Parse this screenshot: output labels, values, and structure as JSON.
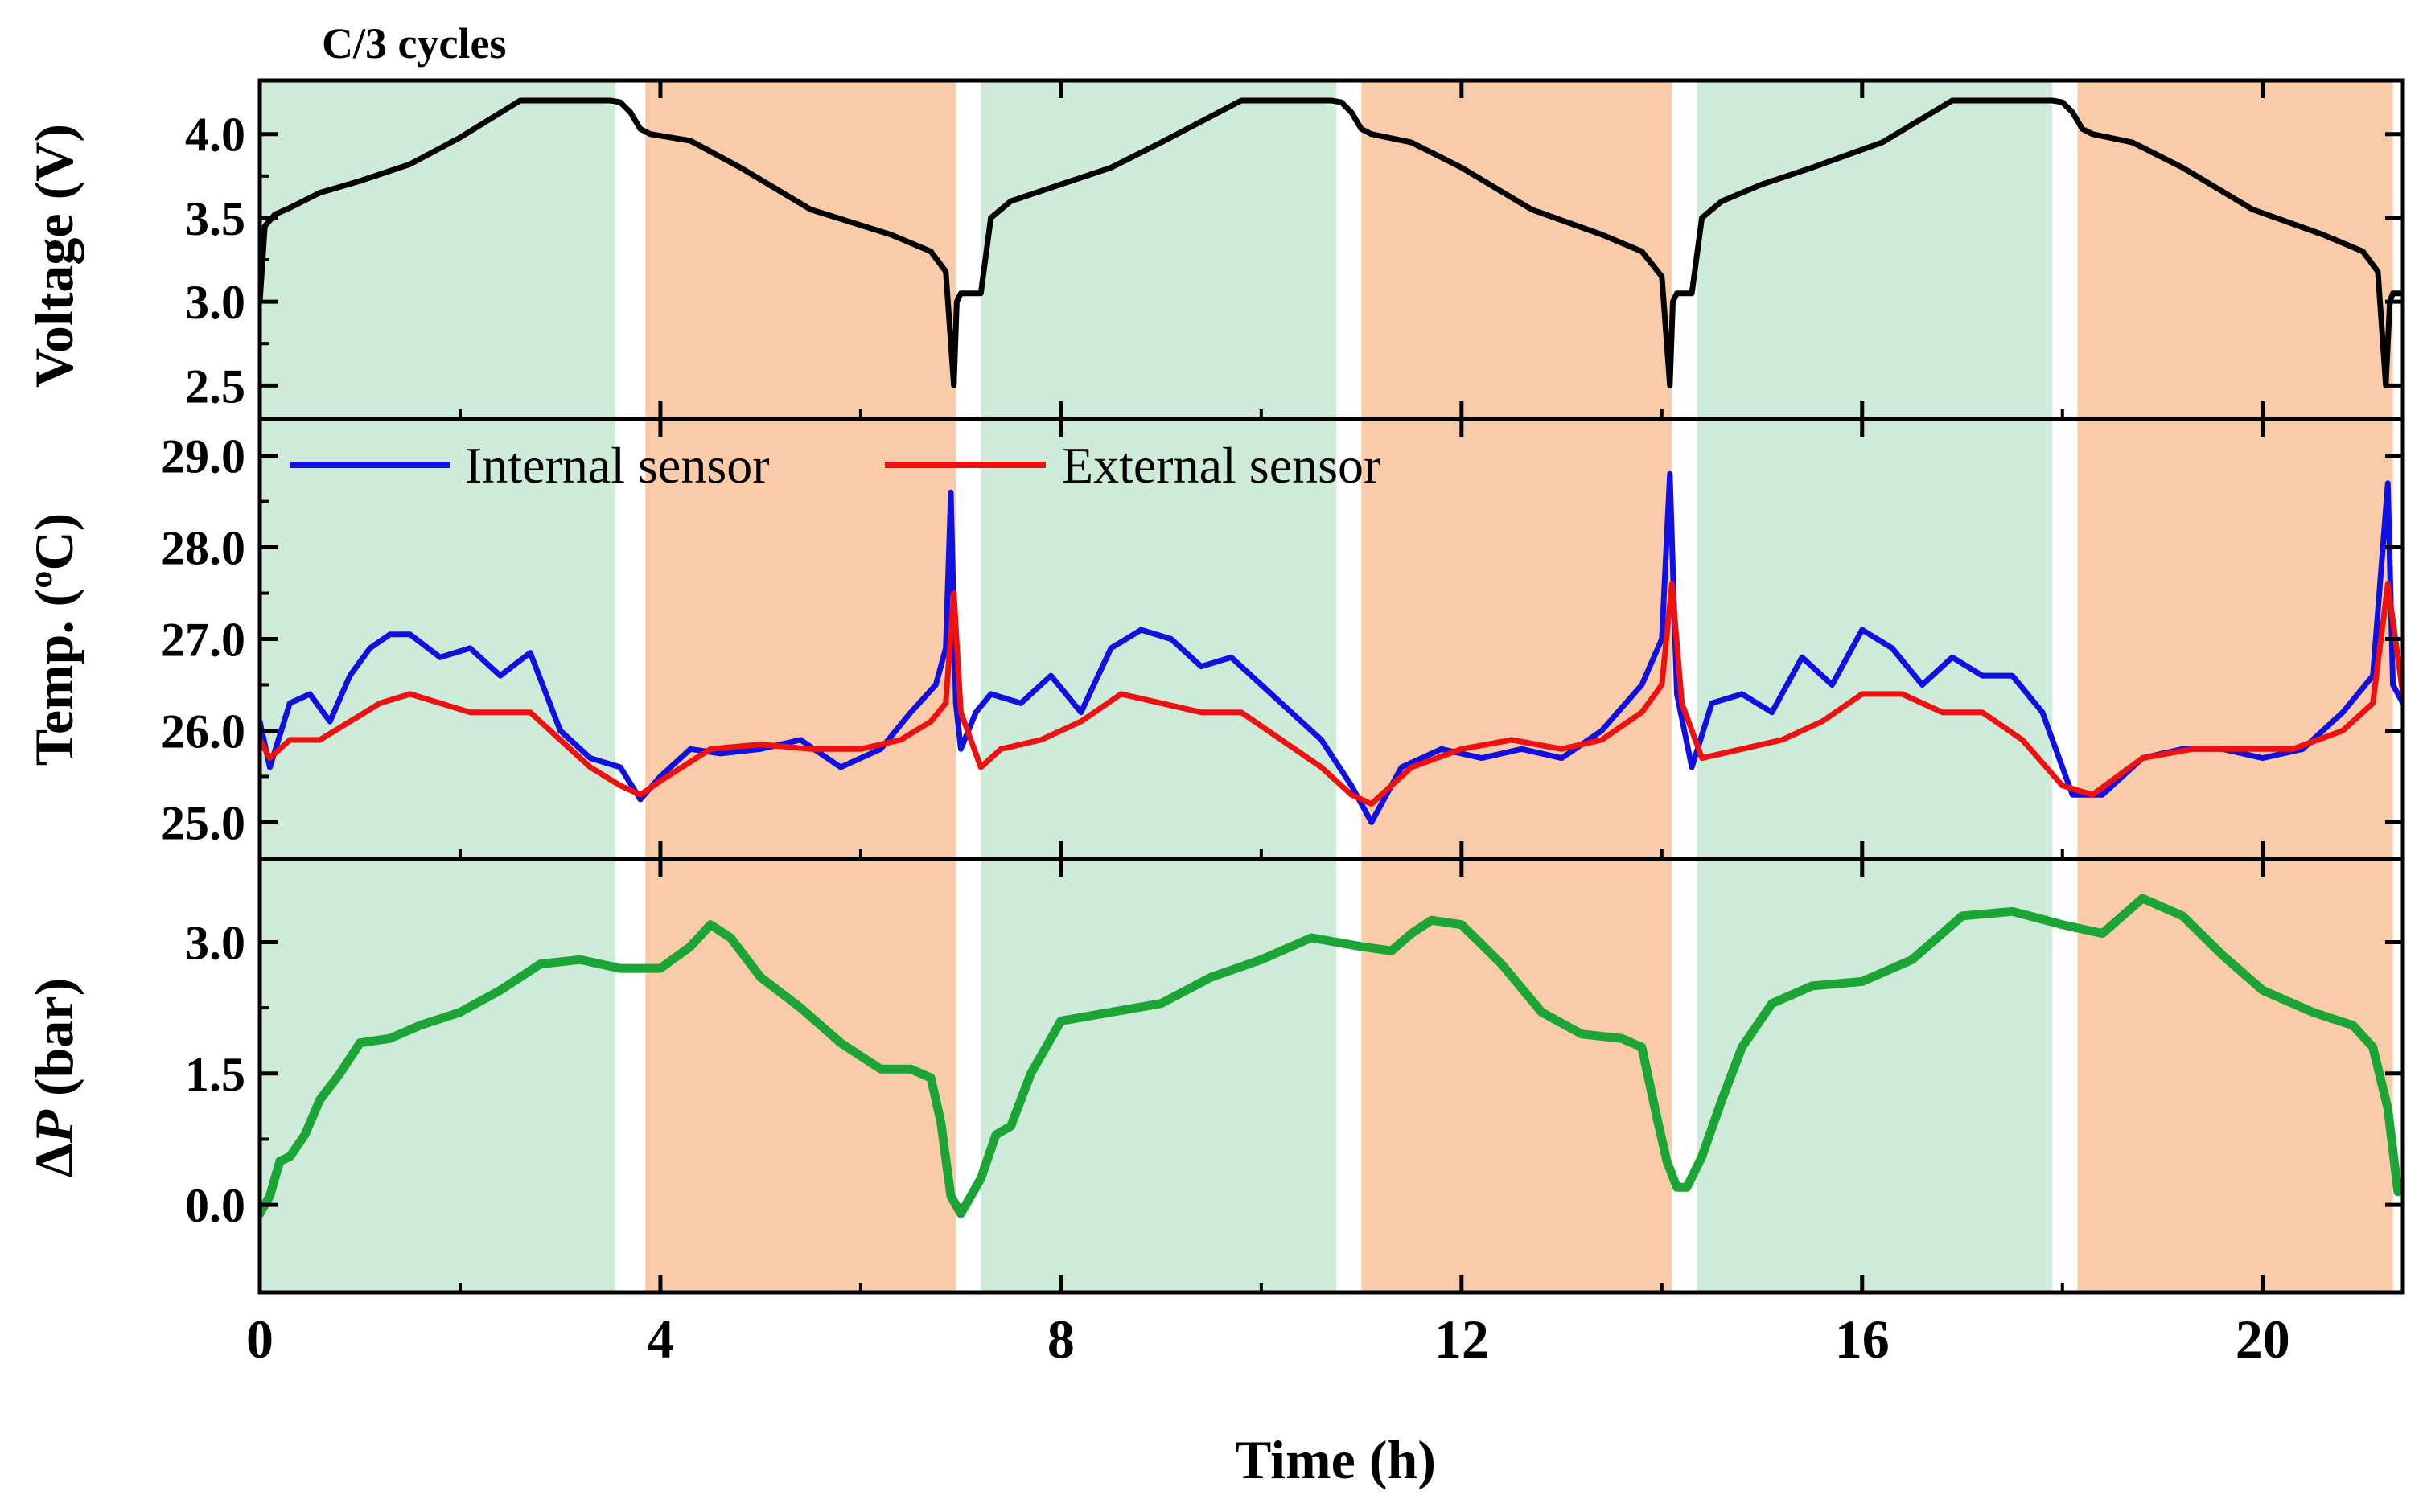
{
  "chart_data": {
    "type": "line",
    "title": "C/3 cycles",
    "xlabel": "Time (h)",
    "xlim": [
      0,
      21.4
    ],
    "xticks": [
      0,
      4,
      8,
      12,
      16,
      20
    ],
    "xtick_labels": [
      "0",
      "4",
      "8",
      "12",
      "16",
      "20"
    ],
    "shaded_regions": [
      {
        "phase": "charge",
        "color": "#cdebd8",
        "x": [
          0.0,
          3.55
        ]
      },
      {
        "phase": "discharge",
        "color": "#f9cba8",
        "x": [
          3.85,
          6.95
        ]
      },
      {
        "phase": "charge",
        "color": "#cdebd8",
        "x": [
          7.2,
          10.75
        ]
      },
      {
        "phase": "discharge",
        "color": "#f9cba8",
        "x": [
          11.0,
          14.1
        ]
      },
      {
        "phase": "charge",
        "color": "#cdebd8",
        "x": [
          14.35,
          17.9
        ]
      },
      {
        "phase": "discharge",
        "color": "#f9cba8",
        "x": [
          18.15,
          21.3
        ]
      }
    ],
    "panels": [
      {
        "name": "voltage",
        "ylabel": "Voltage (V)",
        "ylim": [
          2.3,
          4.32
        ],
        "yticks": [
          2.5,
          3.0,
          3.5,
          4.0
        ],
        "ytick_labels": [
          "2.5",
          "3.0",
          "3.5",
          "4.0"
        ],
        "series": [
          {
            "name": "Voltage",
            "color": "#000000",
            "x": [
              0,
              0.05,
              0.15,
              0.3,
              0.6,
              1.0,
              1.5,
              2.0,
              2.6,
              3.0,
              3.5,
              3.6,
              3.7,
              3.8,
              3.9,
              4.3,
              4.8,
              5.5,
              6.3,
              6.7,
              6.85,
              6.93,
              6.96,
              7.0,
              7.2,
              7.3,
              7.5,
              8.0,
              8.5,
              9.0,
              9.8,
              10.2,
              10.7,
              10.8,
              10.9,
              11.0,
              11.1,
              11.5,
              12.0,
              12.7,
              13.4,
              13.8,
              14.0,
              14.08,
              14.11,
              14.15,
              14.3,
              14.4,
              14.6,
              15.0,
              15.5,
              16.2,
              16.9,
              17.3,
              17.9,
              18.0,
              18.1,
              18.2,
              18.3,
              18.7,
              19.2,
              19.9,
              20.6,
              21.0,
              21.15,
              21.23,
              21.27,
              21.3,
              21.4
            ],
            "y": [
              3.0,
              3.45,
              3.52,
              3.56,
              3.65,
              3.72,
              3.82,
              3.98,
              4.2,
              4.2,
              4.2,
              4.19,
              4.13,
              4.03,
              4.0,
              3.96,
              3.8,
              3.55,
              3.4,
              3.3,
              3.18,
              2.5,
              3.0,
              3.05,
              3.05,
              3.5,
              3.6,
              3.7,
              3.8,
              3.95,
              4.2,
              4.2,
              4.2,
              4.19,
              4.13,
              4.03,
              4.0,
              3.95,
              3.8,
              3.55,
              3.4,
              3.3,
              3.15,
              2.5,
              3.0,
              3.05,
              3.05,
              3.5,
              3.6,
              3.7,
              3.8,
              3.95,
              4.2,
              4.2,
              4.2,
              4.19,
              4.13,
              4.03,
              4.0,
              3.95,
              3.8,
              3.55,
              3.4,
              3.3,
              3.18,
              2.5,
              3.0,
              3.05,
              3.05
            ]
          }
        ]
      },
      {
        "name": "temperature",
        "ylabel": "Temp. (ºC)",
        "ylim": [
          24.6,
          29.4
        ],
        "yticks": [
          25.0,
          26.0,
          27.0,
          28.0,
          29.0
        ],
        "ytick_labels": [
          "25.0",
          "26.0",
          "27.0",
          "28.0",
          "29.0"
        ],
        "legend": {
          "position": "top-left",
          "entries": [
            {
              "label": "Internal sensor",
              "color": "#1010e0"
            },
            {
              "label": "External sensor",
              "color": "#ee1111"
            }
          ]
        },
        "series": [
          {
            "name": "Internal sensor",
            "color": "#1010e0",
            "x": [
              0,
              0.1,
              0.3,
              0.5,
              0.7,
              0.9,
              1.1,
              1.3,
              1.5,
              1.8,
              2.1,
              2.4,
              2.7,
              3.0,
              3.3,
              3.6,
              3.8,
              4.0,
              4.3,
              4.6,
              5.0,
              5.4,
              5.8,
              6.2,
              6.5,
              6.75,
              6.85,
              6.9,
              6.95,
              7.0,
              7.15,
              7.3,
              7.6,
              7.9,
              8.2,
              8.5,
              8.8,
              9.1,
              9.4,
              9.7,
              10.0,
              10.3,
              10.6,
              10.9,
              11.1,
              11.4,
              11.8,
              12.2,
              12.6,
              13.0,
              13.4,
              13.8,
              14.0,
              14.08,
              14.15,
              14.3,
              14.5,
              14.8,
              15.1,
              15.4,
              15.7,
              16.0,
              16.3,
              16.6,
              16.9,
              17.2,
              17.5,
              17.8,
              18.1,
              18.4,
              18.8,
              19.2,
              19.6,
              20.0,
              20.4,
              20.8,
              21.1,
              21.25,
              21.3,
              21.4
            ],
            "y": [
              26.1,
              25.6,
              26.3,
              26.4,
              26.1,
              26.6,
              26.9,
              27.05,
              27.05,
              26.8,
              26.9,
              26.6,
              26.85,
              26.0,
              25.7,
              25.6,
              25.25,
              25.5,
              25.8,
              25.75,
              25.8,
              25.9,
              25.6,
              25.8,
              26.2,
              26.5,
              26.9,
              28.6,
              26.3,
              25.8,
              26.2,
              26.4,
              26.3,
              26.6,
              26.2,
              26.9,
              27.1,
              27.0,
              26.7,
              26.8,
              26.5,
              26.2,
              25.9,
              25.4,
              25.0,
              25.6,
              25.8,
              25.7,
              25.8,
              25.7,
              26.0,
              26.5,
              27.0,
              28.8,
              26.4,
              25.6,
              26.3,
              26.4,
              26.2,
              26.8,
              26.5,
              27.1,
              26.9,
              26.5,
              26.8,
              26.6,
              26.6,
              26.2,
              25.3,
              25.3,
              25.7,
              25.8,
              25.8,
              25.7,
              25.8,
              26.2,
              26.6,
              28.7,
              26.5,
              26.3
            ]
          },
          {
            "name": "External sensor",
            "color": "#ee1111",
            "x": [
              0,
              0.1,
              0.3,
              0.6,
              0.9,
              1.2,
              1.5,
              1.8,
              2.1,
              2.4,
              2.7,
              3.0,
              3.3,
              3.6,
              3.8,
              4.0,
              4.5,
              5.0,
              5.5,
              6.0,
              6.4,
              6.7,
              6.85,
              6.93,
              7.0,
              7.2,
              7.4,
              7.8,
              8.2,
              8.6,
              9.0,
              9.4,
              9.8,
              10.2,
              10.6,
              10.9,
              11.1,
              11.5,
              12.0,
              12.5,
              13.0,
              13.4,
              13.8,
              14.0,
              14.1,
              14.2,
              14.4,
              14.8,
              15.2,
              15.6,
              16.0,
              16.4,
              16.8,
              17.2,
              17.6,
              18.0,
              18.3,
              18.8,
              19.3,
              19.8,
              20.3,
              20.8,
              21.1,
              21.25,
              21.35,
              21.4
            ],
            "y": [
              25.9,
              25.7,
              25.9,
              25.9,
              26.1,
              26.3,
              26.4,
              26.3,
              26.2,
              26.2,
              26.2,
              25.9,
              25.6,
              25.4,
              25.3,
              25.45,
              25.8,
              25.85,
              25.8,
              25.8,
              25.9,
              26.1,
              26.3,
              27.5,
              26.2,
              25.6,
              25.8,
              25.9,
              26.1,
              26.4,
              26.3,
              26.2,
              26.2,
              25.9,
              25.6,
              25.3,
              25.2,
              25.6,
              25.8,
              25.9,
              25.8,
              25.9,
              26.2,
              26.5,
              27.6,
              26.3,
              25.7,
              25.8,
              25.9,
              26.1,
              26.4,
              26.4,
              26.2,
              26.2,
              25.9,
              25.4,
              25.3,
              25.7,
              25.8,
              25.8,
              25.8,
              26.0,
              26.3,
              27.6,
              26.8,
              26.4
            ]
          }
        ]
      },
      {
        "name": "pressure",
        "ylabel": "ΔP (bar)",
        "ylabel_italic_symbol": "P",
        "ylim": [
          -1.0,
          3.95
        ],
        "yticks": [
          0.0,
          1.5,
          3.0
        ],
        "ytick_labels": [
          "0.0",
          "1.5",
          "3.0"
        ],
        "series": [
          {
            "name": "ΔP",
            "color": "#1aa535",
            "x": [
              0,
              0.1,
              0.2,
              0.3,
              0.45,
              0.6,
              0.8,
              1.0,
              1.3,
              1.6,
              2.0,
              2.4,
              2.8,
              3.2,
              3.6,
              4.0,
              4.3,
              4.5,
              4.7,
              5.0,
              5.4,
              5.8,
              6.2,
              6.5,
              6.7,
              6.8,
              6.9,
              7.0,
              7.2,
              7.35,
              7.5,
              7.7,
              8.0,
              8.5,
              9.0,
              9.5,
              10.0,
              10.5,
              11.0,
              11.3,
              11.5,
              11.7,
              12.0,
              12.4,
              12.8,
              13.2,
              13.6,
              13.8,
              13.95,
              14.05,
              14.15,
              14.25,
              14.4,
              14.6,
              14.8,
              15.1,
              15.5,
              16.0,
              16.5,
              17.0,
              17.5,
              18.0,
              18.4,
              18.8,
              19.2,
              19.6,
              20.0,
              20.5,
              20.9,
              21.1,
              21.25,
              21.35
            ],
            "y": [
              -0.1,
              0.1,
              0.5,
              0.55,
              0.8,
              1.2,
              1.5,
              1.85,
              1.9,
              2.05,
              2.2,
              2.45,
              2.75,
              2.8,
              2.7,
              2.7,
              2.95,
              3.2,
              3.05,
              2.6,
              2.25,
              1.85,
              1.55,
              1.55,
              1.45,
              0.95,
              0.1,
              -0.1,
              0.3,
              0.8,
              0.9,
              1.5,
              2.1,
              2.2,
              2.3,
              2.6,
              2.8,
              3.05,
              2.95,
              2.9,
              3.1,
              3.25,
              3.2,
              2.75,
              2.2,
              1.95,
              1.9,
              1.8,
              1.0,
              0.5,
              0.2,
              0.2,
              0.55,
              1.2,
              1.8,
              2.3,
              2.5,
              2.55,
              2.8,
              3.3,
              3.35,
              3.2,
              3.1,
              3.5,
              3.3,
              2.85,
              2.45,
              2.2,
              2.05,
              1.8,
              1.1,
              0.15
            ]
          }
        ]
      }
    ]
  }
}
